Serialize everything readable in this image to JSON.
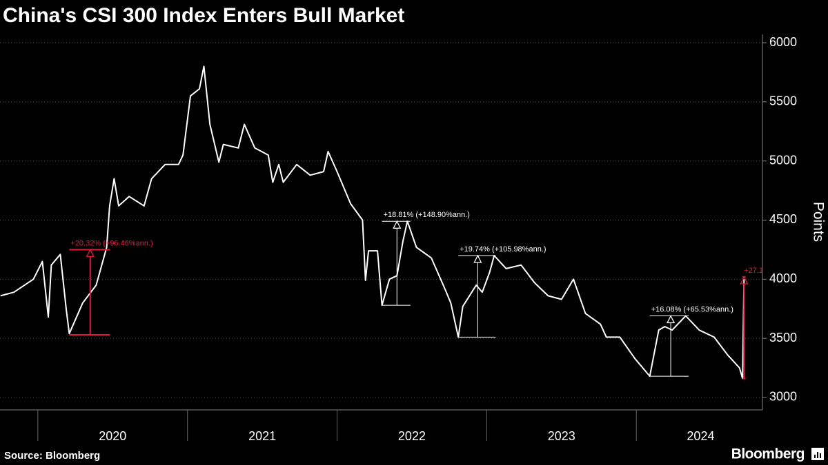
{
  "chart_data": {
    "type": "line",
    "title": "China's CSI 300 Index Enters Bull Market",
    "y_axis_label": "Points",
    "source": "Source: Bloomberg",
    "logo": "Bloomberg",
    "color": "#ffffff",
    "grid": true,
    "xlim": [
      2019.747,
      2024.843
    ],
    "ylim": [
      2895,
      6070
    ],
    "yticks": [
      3000,
      3500,
      4000,
      4500,
      5000,
      5500,
      6000
    ],
    "x_dividers": [
      2020,
      2021,
      2022,
      2023,
      2024
    ],
    "xticks": [
      {
        "value": 2020.5,
        "label": "2020"
      },
      {
        "value": 2021.5,
        "label": "2021"
      },
      {
        "value": 2022.5,
        "label": "2022"
      },
      {
        "value": 2023.5,
        "label": "2023"
      },
      {
        "value": 2024.43,
        "label": "2024"
      }
    ],
    "x": [
      2019.75,
      2019.84,
      2019.97,
      2020.03,
      2020.07,
      2020.09,
      2020.15,
      2020.19,
      2020.21,
      2020.3,
      2020.39,
      2020.46,
      2020.48,
      2020.51,
      2020.54,
      2020.61,
      2020.71,
      2020.76,
      2020.85,
      2020.94,
      2020.97,
      2021.02,
      2021.08,
      2021.11,
      2021.15,
      2021.21,
      2021.24,
      2021.34,
      2021.38,
      2021.45,
      2021.54,
      2021.57,
      2021.61,
      2021.64,
      2021.73,
      2021.82,
      2021.91,
      2021.94,
      2022.0,
      2022.09,
      2022.17,
      2022.18,
      2022.19,
      2022.21,
      2022.27,
      2022.3,
      2022.35,
      2022.4,
      2022.44,
      2022.47,
      2022.53,
      2022.63,
      2022.72,
      2022.76,
      2022.81,
      2022.84,
      2022.93,
      2022.97,
      2023.02,
      2023.05,
      2023.13,
      2023.23,
      2023.32,
      2023.41,
      2023.5,
      2023.58,
      2023.66,
      2023.76,
      2023.8,
      2023.89,
      2023.99,
      2024.09,
      2024.15,
      2024.19,
      2024.24,
      2024.33,
      2024.42,
      2024.52,
      2024.61,
      2024.69,
      2024.71,
      2024.72
    ],
    "values": [
      3860,
      3890,
      4000,
      4150,
      3680,
      4120,
      4210,
      3740,
      3540,
      3800,
      3950,
      4270,
      4620,
      4850,
      4620,
      4700,
      4620,
      4850,
      4970,
      4970,
      5050,
      5550,
      5610,
      5800,
      5310,
      4990,
      5140,
      5110,
      5310,
      5110,
      5050,
      4820,
      4970,
      4820,
      4970,
      4880,
      4910,
      5080,
      4910,
      4640,
      4500,
      4240,
      3990,
      4240,
      4240,
      3780,
      4000,
      4030,
      4320,
      4490,
      4270,
      4180,
      3920,
      3800,
      3510,
      3770,
      3950,
      3890,
      4060,
      4200,
      4090,
      4120,
      3970,
      3860,
      3830,
      4000,
      3710,
      3620,
      3510,
      3510,
      3330,
      3180,
      3570,
      3600,
      3570,
      3690,
      3570,
      3510,
      3360,
      3250,
      3160,
      4000
    ],
    "annotations": [
      {
        "label": "+20.32% (+96.46%ann.)",
        "color": "#e8163c",
        "x": 2020.35,
        "x_from": 2020.21,
        "x_to": 2020.48,
        "low": 3530,
        "high": 4250
      },
      {
        "label": "+18.81% (+148.90%ann.)",
        "color": "#ffffff",
        "x": 2022.4,
        "x_from": 2022.3,
        "x_to": 2022.49,
        "low": 3780,
        "high": 4490
      },
      {
        "label": "+19.74% (+105.98%ann.)",
        "color": "#ffffff",
        "x": 2022.94,
        "x_from": 2022.81,
        "x_to": 2023.06,
        "low": 3510,
        "high": 4200
      },
      {
        "label": "+16.08% (+65.53%ann.)",
        "color": "#ffffff",
        "x": 2024.23,
        "x_from": 2024.09,
        "x_to": 2024.35,
        "low": 3180,
        "high": 3690
      },
      {
        "label": "+27.1",
        "color": "#e8163c",
        "x": 2024.72,
        "x_from": 2024.71,
        "x_to": 2024.73,
        "low": 3160,
        "high": 4020
      }
    ]
  }
}
